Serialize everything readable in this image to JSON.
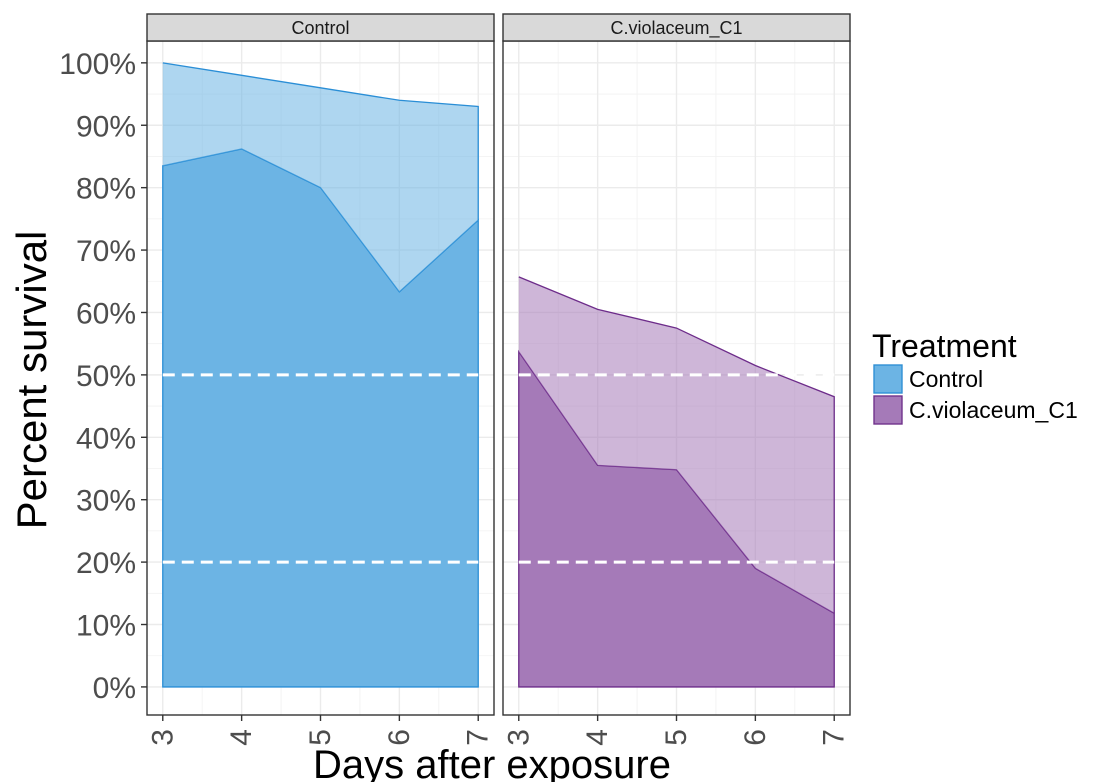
{
  "chart_data": {
    "type": "area",
    "xlabel": "Days after exposure",
    "ylabel": "Percent survival",
    "x_ticks": [
      "3",
      "4",
      "5",
      "6",
      "7"
    ],
    "y_ticks": [
      "0%",
      "10%",
      "20%",
      "30%",
      "40%",
      "50%",
      "60%",
      "70%",
      "80%",
      "90%",
      "100%"
    ],
    "xlim": [
      2.8,
      7.2
    ],
    "ylim": [
      -0.045,
      1.035
    ],
    "grid": true,
    "legend_position": "right",
    "legend": {
      "title": "Treatment",
      "items": [
        {
          "label": "Control",
          "color": "#6cb4e4"
        },
        {
          "label": "C.violaceum_C1",
          "color": "#a57ab8"
        }
      ]
    },
    "reference_lines": [
      0.5,
      0.2
    ],
    "panels": [
      {
        "strip": "Control",
        "fill_color": "#6cb4e4",
        "line_color": "#2a8ed6",
        "x": [
          3,
          4,
          5,
          6,
          7
        ],
        "upper": [
          1.0,
          0.98,
          0.96,
          0.94,
          0.93
        ],
        "lower": [
          0.835,
          0.862,
          0.8,
          0.633,
          0.748
        ]
      },
      {
        "strip": "C.violaceum_C1",
        "fill_color": "#a57ab8",
        "line_color": "#6d2c8a",
        "x": [
          3,
          4,
          5,
          6,
          7
        ],
        "upper": [
          0.657,
          0.605,
          0.575,
          0.515,
          0.465
        ],
        "lower": [
          0.537,
          0.355,
          0.348,
          0.19,
          0.118
        ]
      }
    ]
  }
}
